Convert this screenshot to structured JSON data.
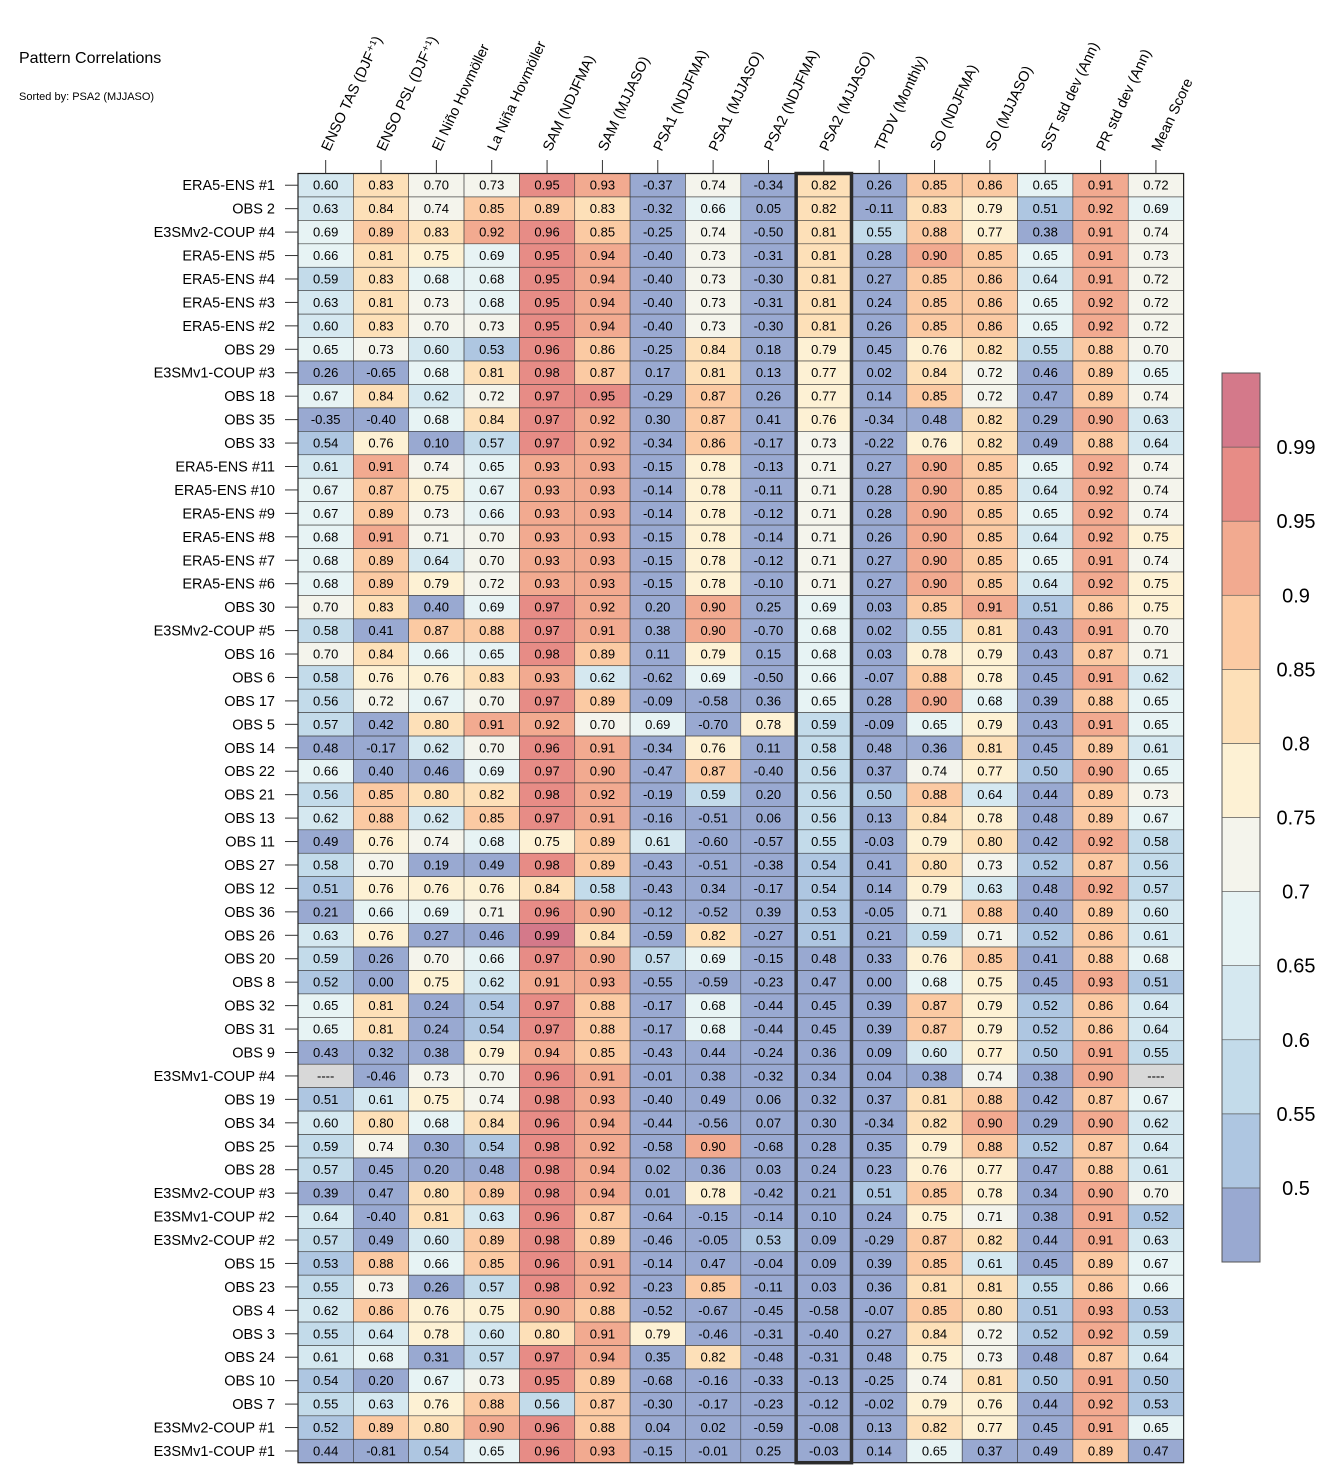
{
  "title": "Pattern Correlations",
  "subtitle": "Sorted by: PSA2 (MJJASO)",
  "chart_data": {
    "type": "heatmap",
    "columns": [
      "ENSO TAS (DJF⁺¹)",
      "ENSO PSL (DJF⁺¹)",
      "El Niño Hovmöller",
      "La Niña Hovmöller",
      "SAM (NDJFMA)",
      "SAM (MJJASO)",
      "PSA1 (NDJFMA)",
      "PSA1 (MJJASO)",
      "PSA2 (NDJFMA)",
      "PSA2 (MJJASO)",
      "TPDV (Monthly)",
      "SO (NDJFMA)",
      "SO (MJJASO)",
      "SST std dev (Ann)",
      "PR std dev (Ann)",
      "Mean Score"
    ],
    "highlight_column": "PSA2 (MJJASO)",
    "missing_label": "----",
    "rows": [
      {
        "label": "ERA5-ENS    #1",
        "values": [
          0.6,
          0.83,
          0.7,
          0.73,
          0.95,
          0.93,
          -0.37,
          0.74,
          -0.34,
          0.82,
          0.26,
          0.85,
          0.86,
          0.65,
          0.91,
          0.72
        ]
      },
      {
        "label": "OBS 2",
        "values": [
          0.63,
          0.84,
          0.74,
          0.85,
          0.89,
          0.83,
          -0.32,
          0.66,
          0.05,
          0.82,
          -0.11,
          0.83,
          0.79,
          0.51,
          0.92,
          0.69
        ]
      },
      {
        "label": "E3SMv2-COUP #4",
        "values": [
          0.69,
          0.89,
          0.83,
          0.92,
          0.96,
          0.85,
          -0.25,
          0.74,
          -0.5,
          0.81,
          0.55,
          0.88,
          0.77,
          0.38,
          0.91,
          0.74
        ]
      },
      {
        "label": "ERA5-ENS    #5",
        "values": [
          0.66,
          0.81,
          0.75,
          0.69,
          0.95,
          0.94,
          -0.4,
          0.73,
          -0.31,
          0.81,
          0.28,
          0.9,
          0.85,
          0.65,
          0.91,
          0.73
        ]
      },
      {
        "label": "ERA5-ENS    #4",
        "values": [
          0.59,
          0.83,
          0.68,
          0.68,
          0.95,
          0.94,
          -0.4,
          0.73,
          -0.3,
          0.81,
          0.27,
          0.85,
          0.86,
          0.64,
          0.91,
          0.72
        ]
      },
      {
        "label": "ERA5-ENS    #3",
        "values": [
          0.63,
          0.81,
          0.73,
          0.68,
          0.95,
          0.94,
          -0.4,
          0.73,
          -0.31,
          0.81,
          0.24,
          0.85,
          0.86,
          0.65,
          0.92,
          0.72
        ]
      },
      {
        "label": "ERA5-ENS    #2",
        "values": [
          0.6,
          0.83,
          0.7,
          0.73,
          0.95,
          0.94,
          -0.4,
          0.73,
          -0.3,
          0.81,
          0.26,
          0.85,
          0.86,
          0.65,
          0.92,
          0.72
        ]
      },
      {
        "label": "OBS 29",
        "values": [
          0.65,
          0.73,
          0.6,
          0.53,
          0.96,
          0.86,
          -0.25,
          0.84,
          0.18,
          0.79,
          0.45,
          0.76,
          0.82,
          0.55,
          0.88,
          0.7
        ]
      },
      {
        "label": "E3SMv1-COUP #3",
        "values": [
          0.26,
          -0.65,
          0.68,
          0.81,
          0.98,
          0.87,
          0.17,
          0.81,
          0.13,
          0.77,
          0.02,
          0.84,
          0.72,
          0.46,
          0.89,
          0.65
        ]
      },
      {
        "label": "OBS 18",
        "values": [
          0.67,
          0.84,
          0.62,
          0.72,
          0.97,
          0.95,
          -0.29,
          0.87,
          0.26,
          0.77,
          0.14,
          0.85,
          0.72,
          0.47,
          0.89,
          0.74
        ]
      },
      {
        "label": "OBS 35",
        "values": [
          -0.35,
          -0.4,
          0.68,
          0.84,
          0.97,
          0.92,
          0.3,
          0.87,
          0.41,
          0.76,
          -0.34,
          0.48,
          0.82,
          0.29,
          0.9,
          0.63
        ]
      },
      {
        "label": "OBS 33",
        "values": [
          0.54,
          0.76,
          0.1,
          0.57,
          0.97,
          0.92,
          -0.34,
          0.86,
          -0.17,
          0.73,
          -0.22,
          0.76,
          0.82,
          0.49,
          0.88,
          0.64
        ]
      },
      {
        "label": "ERA5-ENS    #11",
        "values": [
          0.61,
          0.91,
          0.74,
          0.65,
          0.93,
          0.93,
          -0.15,
          0.78,
          -0.13,
          0.71,
          0.27,
          0.9,
          0.85,
          0.65,
          0.92,
          0.74
        ]
      },
      {
        "label": "ERA5-ENS    #10",
        "values": [
          0.67,
          0.87,
          0.75,
          0.67,
          0.93,
          0.93,
          -0.14,
          0.78,
          -0.11,
          0.71,
          0.28,
          0.9,
          0.85,
          0.64,
          0.92,
          0.74
        ]
      },
      {
        "label": "ERA5-ENS    #9",
        "values": [
          0.67,
          0.89,
          0.73,
          0.66,
          0.93,
          0.93,
          -0.14,
          0.78,
          -0.12,
          0.71,
          0.28,
          0.9,
          0.85,
          0.65,
          0.92,
          0.74
        ]
      },
      {
        "label": "ERA5-ENS    #8",
        "values": [
          0.68,
          0.91,
          0.71,
          0.7,
          0.93,
          0.93,
          -0.15,
          0.78,
          -0.14,
          0.71,
          0.26,
          0.9,
          0.85,
          0.64,
          0.92,
          0.75
        ]
      },
      {
        "label": "ERA5-ENS    #7",
        "values": [
          0.68,
          0.89,
          0.64,
          0.7,
          0.93,
          0.93,
          -0.15,
          0.78,
          -0.12,
          0.71,
          0.27,
          0.9,
          0.85,
          0.65,
          0.91,
          0.74
        ]
      },
      {
        "label": "ERA5-ENS    #6",
        "values": [
          0.68,
          0.89,
          0.79,
          0.72,
          0.93,
          0.93,
          -0.15,
          0.78,
          -0.1,
          0.71,
          0.27,
          0.9,
          0.85,
          0.64,
          0.92,
          0.75
        ]
      },
      {
        "label": "OBS 30",
        "values": [
          0.7,
          0.83,
          0.4,
          0.69,
          0.97,
          0.92,
          0.2,
          0.9,
          0.25,
          0.69,
          0.03,
          0.85,
          0.91,
          0.51,
          0.86,
          0.75
        ]
      },
      {
        "label": "E3SMv2-COUP #5",
        "values": [
          0.58,
          0.41,
          0.87,
          0.88,
          0.97,
          0.91,
          0.38,
          0.9,
          -0.7,
          0.68,
          0.02,
          0.55,
          0.81,
          0.43,
          0.91,
          0.7
        ]
      },
      {
        "label": "OBS 16",
        "values": [
          0.7,
          0.84,
          0.66,
          0.65,
          0.98,
          0.89,
          0.11,
          0.79,
          0.15,
          0.68,
          0.03,
          0.78,
          0.79,
          0.43,
          0.87,
          0.71
        ]
      },
      {
        "label": "OBS 6",
        "values": [
          0.58,
          0.76,
          0.76,
          0.83,
          0.93,
          0.62,
          -0.62,
          0.69,
          -0.5,
          0.66,
          -0.07,
          0.88,
          0.78,
          0.45,
          0.91,
          0.62
        ]
      },
      {
        "label": "OBS 17",
        "values": [
          0.56,
          0.72,
          0.67,
          0.7,
          0.97,
          0.89,
          -0.09,
          -0.58,
          0.36,
          0.65,
          0.28,
          0.9,
          0.68,
          0.39,
          0.88,
          0.65
        ]
      },
      {
        "label": "OBS 5",
        "values": [
          0.57,
          0.42,
          0.8,
          0.91,
          0.92,
          0.7,
          0.69,
          -0.7,
          0.78,
          0.59,
          -0.09,
          0.65,
          0.79,
          0.43,
          0.91,
          0.65
        ]
      },
      {
        "label": "OBS 14",
        "values": [
          0.48,
          -0.17,
          0.62,
          0.7,
          0.96,
          0.91,
          -0.34,
          0.76,
          0.11,
          0.58,
          0.48,
          0.36,
          0.81,
          0.45,
          0.89,
          0.61
        ]
      },
      {
        "label": "OBS 22",
        "values": [
          0.66,
          0.4,
          0.46,
          0.69,
          0.97,
          0.9,
          -0.47,
          0.87,
          -0.4,
          0.56,
          0.37,
          0.74,
          0.77,
          0.5,
          0.9,
          0.65
        ]
      },
      {
        "label": "OBS 21",
        "values": [
          0.56,
          0.85,
          0.8,
          0.82,
          0.98,
          0.92,
          -0.19,
          0.59,
          0.2,
          0.56,
          0.5,
          0.88,
          0.64,
          0.44,
          0.89,
          0.73
        ]
      },
      {
        "label": "OBS 13",
        "values": [
          0.62,
          0.88,
          0.62,
          0.85,
          0.97,
          0.91,
          -0.16,
          -0.51,
          0.06,
          0.56,
          0.13,
          0.84,
          0.78,
          0.48,
          0.89,
          0.67
        ]
      },
      {
        "label": "OBS 11",
        "values": [
          0.49,
          0.76,
          0.74,
          0.68,
          0.75,
          0.89,
          0.61,
          -0.6,
          -0.57,
          0.55,
          -0.03,
          0.79,
          0.8,
          0.42,
          0.92,
          0.58
        ]
      },
      {
        "label": "OBS 27",
        "values": [
          0.58,
          0.7,
          0.19,
          0.49,
          0.98,
          0.89,
          -0.43,
          -0.51,
          -0.38,
          0.54,
          0.41,
          0.8,
          0.73,
          0.52,
          0.87,
          0.56
        ]
      },
      {
        "label": "OBS 12",
        "values": [
          0.51,
          0.76,
          0.76,
          0.76,
          0.84,
          0.58,
          -0.43,
          0.34,
          -0.17,
          0.54,
          0.14,
          0.79,
          0.63,
          0.48,
          0.92,
          0.57
        ]
      },
      {
        "label": "OBS 36",
        "values": [
          0.21,
          0.66,
          0.69,
          0.71,
          0.96,
          0.9,
          -0.12,
          -0.52,
          0.39,
          0.53,
          -0.05,
          0.71,
          0.88,
          0.4,
          0.89,
          0.6
        ]
      },
      {
        "label": "OBS 26",
        "values": [
          0.63,
          0.76,
          0.27,
          0.46,
          0.99,
          0.84,
          -0.59,
          0.82,
          -0.27,
          0.51,
          0.21,
          0.59,
          0.71,
          0.52,
          0.86,
          0.61
        ]
      },
      {
        "label": "OBS 20",
        "values": [
          0.59,
          0.26,
          0.7,
          0.66,
          0.97,
          0.9,
          0.57,
          0.69,
          -0.15,
          0.48,
          0.33,
          0.76,
          0.85,
          0.41,
          0.88,
          0.68
        ]
      },
      {
        "label": "OBS 8",
        "values": [
          0.52,
          0.0,
          0.75,
          0.62,
          0.91,
          0.93,
          -0.55,
          -0.59,
          -0.23,
          0.47,
          -0.0,
          0.68,
          0.75,
          0.45,
          0.93,
          0.51
        ]
      },
      {
        "label": "OBS 32",
        "values": [
          0.65,
          0.81,
          0.24,
          0.54,
          0.97,
          0.88,
          -0.17,
          0.68,
          -0.44,
          0.45,
          0.39,
          0.87,
          0.79,
          0.52,
          0.86,
          0.64
        ]
      },
      {
        "label": "OBS 31",
        "values": [
          0.65,
          0.81,
          0.24,
          0.54,
          0.97,
          0.88,
          -0.17,
          0.68,
          -0.44,
          0.45,
          0.39,
          0.87,
          0.79,
          0.52,
          0.86,
          0.64
        ]
      },
      {
        "label": "OBS 9",
        "values": [
          0.43,
          0.32,
          0.38,
          0.79,
          0.94,
          0.85,
          -0.43,
          0.44,
          -0.24,
          0.36,
          0.09,
          0.6,
          0.77,
          0.5,
          0.91,
          0.55
        ]
      },
      {
        "label": "E3SMv1-COUP #4",
        "values": [
          null,
          -0.46,
          0.73,
          0.7,
          0.96,
          0.91,
          -0.01,
          0.38,
          -0.32,
          0.34,
          0.04,
          0.38,
          0.74,
          0.38,
          0.9,
          null
        ]
      },
      {
        "label": "OBS 19",
        "values": [
          0.51,
          0.61,
          0.75,
          0.74,
          0.98,
          0.93,
          -0.4,
          0.49,
          0.06,
          0.32,
          0.37,
          0.81,
          0.88,
          0.42,
          0.87,
          0.67
        ]
      },
      {
        "label": "OBS 34",
        "values": [
          0.6,
          0.8,
          0.68,
          0.84,
          0.96,
          0.94,
          -0.44,
          -0.56,
          0.07,
          0.3,
          -0.34,
          0.82,
          0.9,
          0.29,
          0.9,
          0.62
        ]
      },
      {
        "label": "OBS 25",
        "values": [
          0.59,
          0.74,
          0.3,
          0.54,
          0.98,
          0.92,
          -0.58,
          0.9,
          -0.68,
          0.28,
          0.35,
          0.79,
          0.88,
          0.52,
          0.87,
          0.64
        ]
      },
      {
        "label": "OBS 28",
        "values": [
          0.57,
          0.45,
          0.2,
          0.48,
          0.98,
          0.94,
          0.02,
          0.36,
          0.03,
          0.24,
          0.23,
          0.76,
          0.77,
          0.47,
          0.88,
          0.61
        ]
      },
      {
        "label": "E3SMv2-COUP #3",
        "values": [
          0.39,
          0.47,
          0.8,
          0.89,
          0.98,
          0.94,
          0.01,
          0.78,
          -0.42,
          0.21,
          0.51,
          0.85,
          0.78,
          0.34,
          0.9,
          0.7
        ]
      },
      {
        "label": "E3SMv1-COUP #2",
        "values": [
          0.64,
          -0.4,
          0.81,
          0.63,
          0.96,
          0.87,
          -0.64,
          -0.15,
          -0.14,
          0.1,
          0.24,
          0.75,
          0.71,
          0.38,
          0.91,
          0.52
        ]
      },
      {
        "label": "E3SMv2-COUP #2",
        "values": [
          0.57,
          0.49,
          0.6,
          0.89,
          0.98,
          0.89,
          -0.46,
          -0.05,
          0.53,
          0.09,
          -0.29,
          0.87,
          0.82,
          0.44,
          0.91,
          0.63
        ]
      },
      {
        "label": "OBS 15",
        "values": [
          0.53,
          0.88,
          0.66,
          0.85,
          0.96,
          0.91,
          -0.14,
          0.47,
          -0.04,
          0.09,
          0.39,
          0.85,
          0.61,
          0.45,
          0.89,
          0.67
        ]
      },
      {
        "label": "OBS 23",
        "values": [
          0.55,
          0.73,
          0.26,
          0.57,
          0.98,
          0.92,
          -0.23,
          0.85,
          -0.11,
          0.03,
          0.36,
          0.81,
          0.81,
          0.55,
          0.86,
          0.66
        ]
      },
      {
        "label": "OBS 4",
        "values": [
          0.62,
          0.86,
          0.76,
          0.75,
          0.9,
          0.88,
          -0.52,
          -0.67,
          -0.45,
          -0.58,
          -0.07,
          0.85,
          0.8,
          0.51,
          0.93,
          0.53
        ]
      },
      {
        "label": "OBS 3",
        "values": [
          0.55,
          0.64,
          0.78,
          0.6,
          0.8,
          0.91,
          0.79,
          -0.46,
          -0.31,
          -0.4,
          0.27,
          0.84,
          0.72,
          0.52,
          0.92,
          0.59
        ]
      },
      {
        "label": "OBS 24",
        "values": [
          0.61,
          0.68,
          0.31,
          0.57,
          0.97,
          0.94,
          0.35,
          0.82,
          -0.48,
          -0.31,
          0.48,
          0.75,
          0.73,
          0.48,
          0.87,
          0.64
        ]
      },
      {
        "label": "OBS 10",
        "values": [
          0.54,
          0.2,
          0.67,
          0.73,
          0.95,
          0.89,
          -0.68,
          -0.16,
          -0.33,
          -0.13,
          -0.25,
          0.74,
          0.81,
          0.5,
          0.91,
          0.5
        ]
      },
      {
        "label": "OBS 7",
        "values": [
          0.55,
          0.63,
          0.76,
          0.88,
          0.56,
          0.87,
          -0.3,
          -0.17,
          -0.23,
          -0.12,
          -0.02,
          0.79,
          0.76,
          0.44,
          0.92,
          0.53
        ]
      },
      {
        "label": "E3SMv2-COUP #1",
        "values": [
          0.52,
          0.89,
          0.8,
          0.9,
          0.96,
          0.88,
          0.04,
          0.02,
          -0.59,
          -0.08,
          0.13,
          0.82,
          0.77,
          0.45,
          0.91,
          0.65
        ]
      },
      {
        "label": "E3SMv1-COUP #1",
        "values": [
          0.44,
          -0.81,
          0.54,
          0.65,
          0.96,
          0.93,
          -0.15,
          -0.01,
          0.25,
          -0.03,
          0.14,
          0.65,
          0.37,
          0.49,
          0.89,
          0.47
        ]
      }
    ],
    "colorbar": {
      "boundaries": [
        0.5,
        0.55,
        0.6,
        0.65,
        0.7,
        0.75,
        0.8,
        0.85,
        0.9,
        0.95,
        0.99
      ],
      "tick_labels": [
        "0.5",
        "0.55",
        "0.6",
        "0.65",
        "0.7",
        "0.75",
        "0.8",
        "0.85",
        "0.9",
        "0.95",
        "0.99"
      ],
      "colors": [
        "#99a9d1",
        "#aec6e1",
        "#c3dbea",
        "#d5e8f0",
        "#e7f3f4",
        "#f4f4ec",
        "#fdf1d4",
        "#fde0b8",
        "#fbcaa3",
        "#f2aa90",
        "#e78c86",
        "#d4798a"
      ],
      "missing_color": "#d8d8d8"
    }
  }
}
